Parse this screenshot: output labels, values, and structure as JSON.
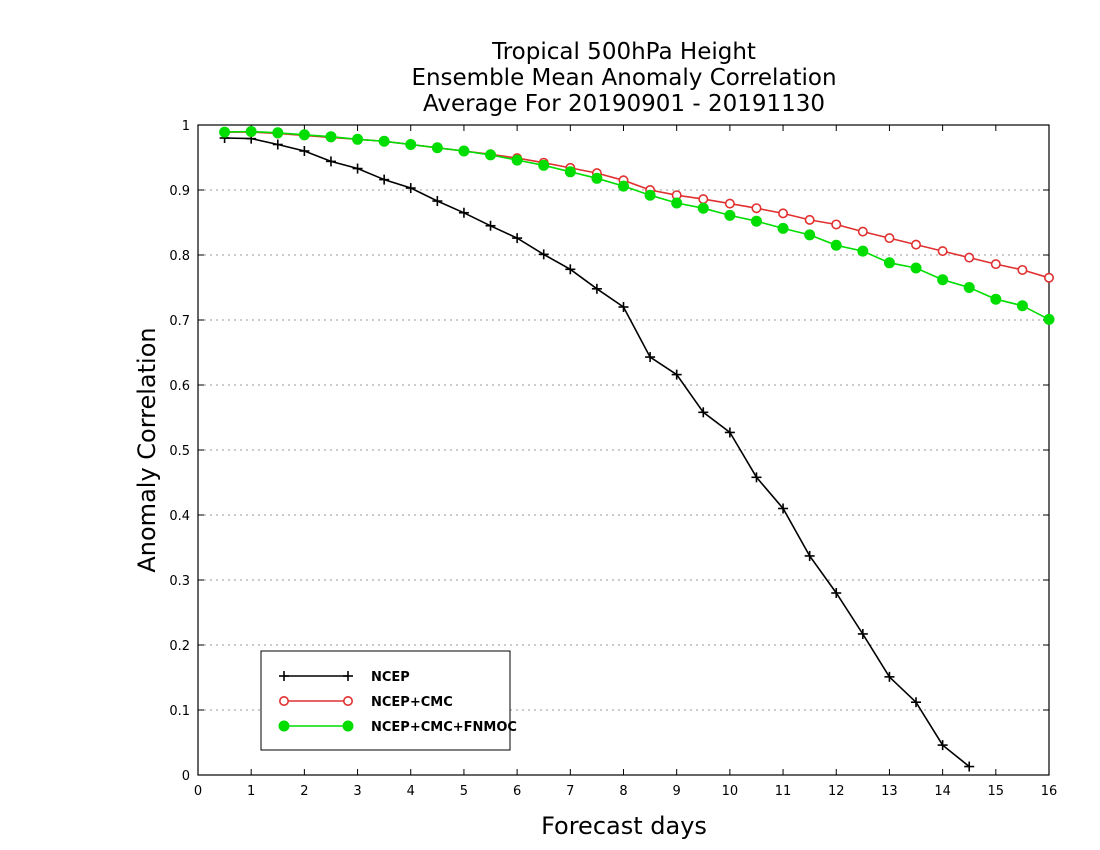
{
  "chart_data": {
    "type": "line",
    "title": [
      "Tropical 500hPa Height",
      "Ensemble Mean Anomaly Correlation",
      "Average For 20190901 - 20191130"
    ],
    "xlabel": "Forecast days",
    "ylabel": "Anomaly Correlation",
    "xlim": [
      0,
      16
    ],
    "ylim": [
      0,
      1
    ],
    "xticks": [
      "0",
      "1",
      "2",
      "3",
      "4",
      "5",
      "6",
      "7",
      "8",
      "9",
      "10",
      "11",
      "12",
      "13",
      "14",
      "15",
      "16"
    ],
    "yticks": [
      "0",
      "0.1",
      "0.2",
      "0.3",
      "0.4",
      "0.5",
      "0.6",
      "0.7",
      "0.8",
      "0.9",
      "1"
    ],
    "grid": "horizontal dotted",
    "legend_position": "bottom-left",
    "series": [
      {
        "name": "NCEP",
        "color": "#000000",
        "marker": "plus",
        "x": [
          0.5,
          1,
          1.5,
          2,
          2.5,
          3,
          3.5,
          4,
          4.5,
          5,
          5.5,
          6,
          6.5,
          7,
          7.5,
          8,
          8.5,
          9,
          9.5,
          10,
          10.5,
          11,
          11.5,
          12,
          12.5,
          13,
          13.5,
          14,
          14.5
        ],
        "values": [
          0.98,
          0.979,
          0.97,
          0.96,
          0.944,
          0.933,
          0.916,
          0.903,
          0.883,
          0.865,
          0.845,
          0.826,
          0.801,
          0.778,
          0.748,
          0.72,
          0.643,
          0.616,
          0.558,
          0.527,
          0.458,
          0.41,
          0.337,
          0.28,
          0.217,
          0.151,
          0.112,
          0.046,
          0.013
        ]
      },
      {
        "name": "NCEP+CMC",
        "color": "#e03030",
        "marker": "open-circle",
        "x": [
          0.5,
          1,
          1.5,
          2,
          2.5,
          3,
          3.5,
          4,
          4.5,
          5,
          5.5,
          6,
          6.5,
          7,
          7.5,
          8,
          8.5,
          9,
          9.5,
          10,
          10.5,
          11,
          11.5,
          12,
          12.5,
          13,
          13.5,
          14,
          14.5,
          15,
          15.5,
          16
        ],
        "values": [
          0.989,
          0.989,
          0.987,
          0.984,
          0.981,
          0.978,
          0.975,
          0.97,
          0.965,
          0.96,
          0.955,
          0.949,
          0.942,
          0.934,
          0.926,
          0.915,
          0.9,
          0.892,
          0.886,
          0.879,
          0.872,
          0.864,
          0.854,
          0.847,
          0.836,
          0.826,
          0.816,
          0.806,
          0.796,
          0.786,
          0.777,
          0.765
        ]
      },
      {
        "name": "NCEP+CMC+FNMOC",
        "color": "#00dd00",
        "marker": "filled-circle",
        "x": [
          0.5,
          1,
          1.5,
          2,
          2.5,
          3,
          3.5,
          4,
          4.5,
          5,
          5.5,
          6,
          6.5,
          7,
          7.5,
          8,
          8.5,
          9,
          9.5,
          10,
          10.5,
          11,
          11.5,
          12,
          12.5,
          13,
          13.5,
          14,
          14.5,
          15,
          15.5,
          16
        ],
        "values": [
          0.989,
          0.99,
          0.988,
          0.985,
          0.982,
          0.978,
          0.975,
          0.97,
          0.965,
          0.96,
          0.954,
          0.946,
          0.938,
          0.928,
          0.918,
          0.906,
          0.892,
          0.88,
          0.872,
          0.861,
          0.852,
          0.841,
          0.831,
          0.815,
          0.806,
          0.788,
          0.78,
          0.762,
          0.75,
          0.732,
          0.722,
          0.701
        ]
      }
    ]
  }
}
